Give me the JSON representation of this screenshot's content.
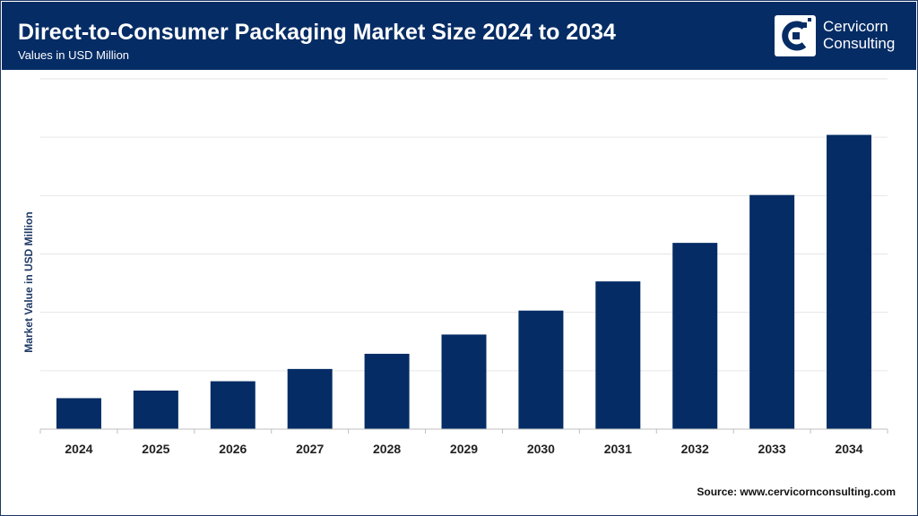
{
  "header": {
    "title": "Direct-to-Consumer Packaging Market Size 2024 to 2034",
    "subtitle": "Values in USD Million"
  },
  "logo": {
    "line1": "Cervicorn",
    "line2": "Consulting"
  },
  "source": "Source: www.cervicornconsulting.com",
  "colors": {
    "header_bg": "#052c65",
    "bar": "#052c65",
    "axis_label": "#1f3a66",
    "grid": "#e6e6e6"
  },
  "chart_data": {
    "type": "bar",
    "categories": [
      "2024",
      "2025",
      "2026",
      "2027",
      "2028",
      "2029",
      "2030",
      "2031",
      "2032",
      "2033",
      "2034"
    ],
    "values": [
      5.3,
      6.6,
      8.2,
      10.3,
      12.9,
      16.2,
      20.3,
      25.3,
      31.9,
      40.1,
      50.4
    ],
    "ylabel": "Market Value in USD Million",
    "xlabel": "",
    "ylim": [
      0,
      60
    ],
    "grid": true,
    "y_tick_labels_shown": false,
    "legend": "none"
  }
}
